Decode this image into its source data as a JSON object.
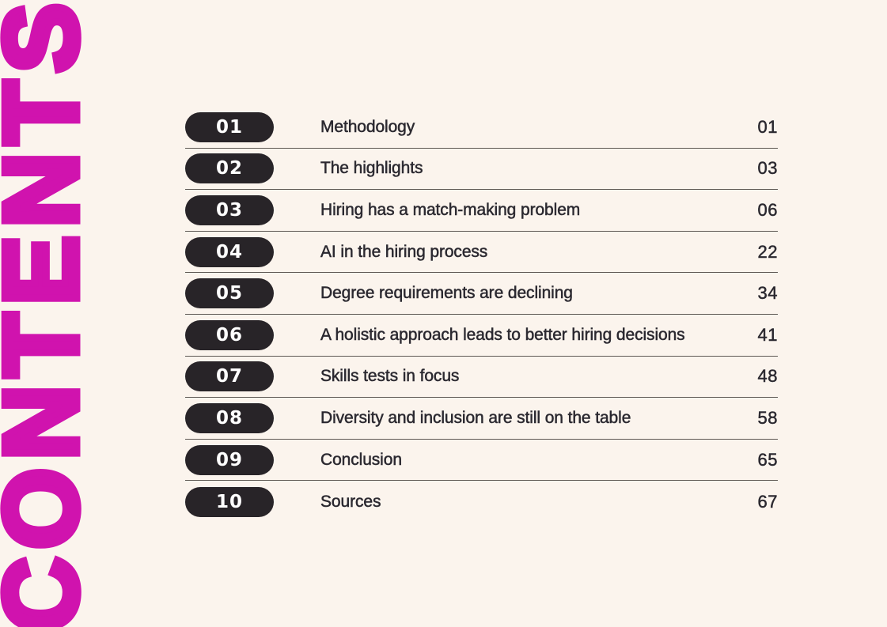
{
  "page": {
    "vertical_title": "CONTENTS",
    "colors": {
      "background": "#fbf4ed",
      "accent": "#d013ae",
      "pill_background": "#282428",
      "text": "#2b2930",
      "divider": "#5d5853"
    }
  },
  "toc": {
    "items": [
      {
        "number": "01",
        "title": "Methodology",
        "page": "01"
      },
      {
        "number": "02",
        "title": "The highlights",
        "page": "03"
      },
      {
        "number": "03",
        "title": "Hiring has a match-making problem",
        "page": "06"
      },
      {
        "number": "04",
        "title": "AI in the hiring process",
        "page": "22"
      },
      {
        "number": "05",
        "title": "Degree requirements are declining",
        "page": "34"
      },
      {
        "number": "06",
        "title": "A holistic approach leads to better hiring decisions",
        "page": "41"
      },
      {
        "number": "07",
        "title": "Skills tests in focus",
        "page": "48"
      },
      {
        "number": "08",
        "title": "Diversity and inclusion are still on the table",
        "page": "58"
      },
      {
        "number": "09",
        "title": "Conclusion",
        "page": "65"
      },
      {
        "number": "10",
        "title": "Sources",
        "page": "67"
      }
    ]
  }
}
